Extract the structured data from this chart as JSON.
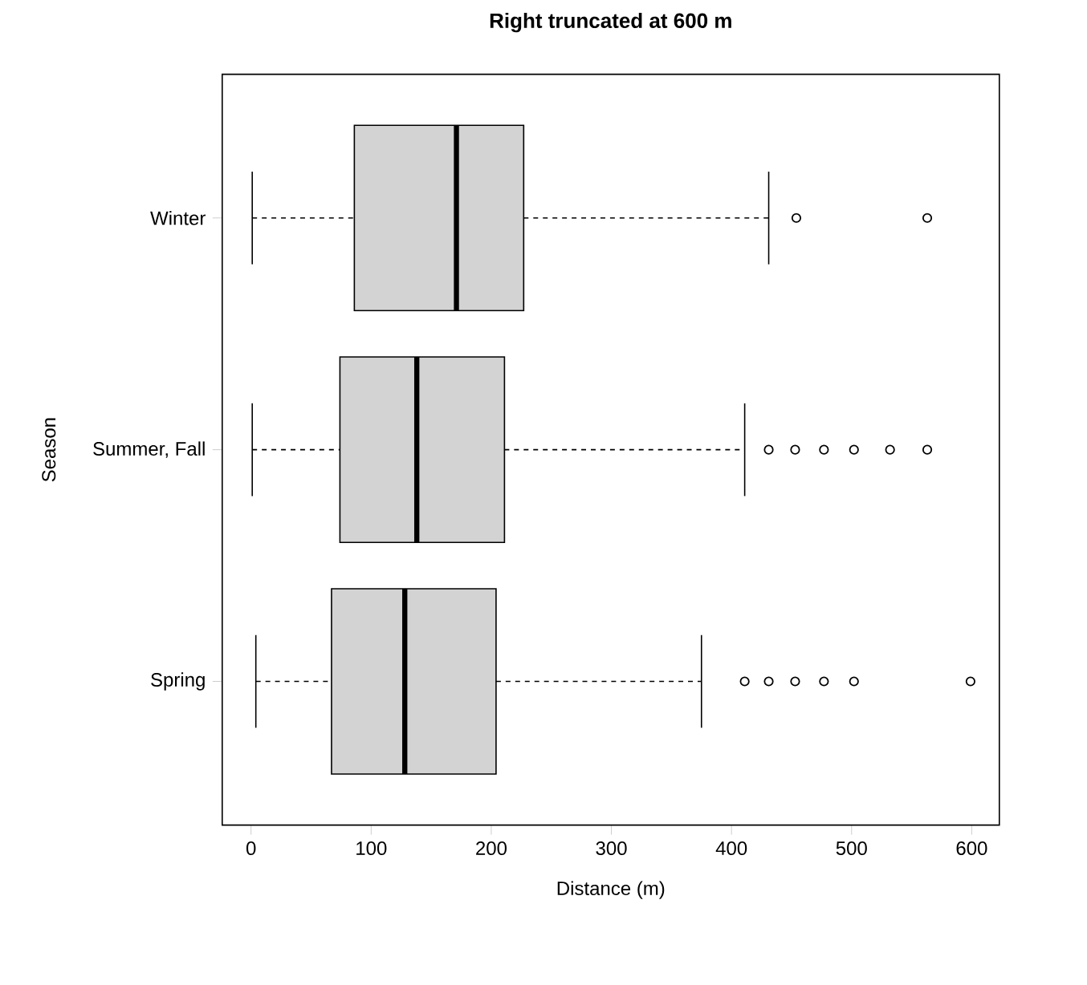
{
  "chart_data": {
    "type": "box",
    "title": "Right truncated at 600 m",
    "xlabel": "Distance (m)",
    "ylabel": "Season",
    "orientation": "horizontal",
    "color": "#d3d3d3",
    "categories": [
      "Winter",
      "Summer, Fall",
      "Spring"
    ],
    "boxes": [
      {
        "low": 1,
        "q1": 86,
        "median": 171,
        "q3": 227,
        "high": 431,
        "outliers": [
          454,
          563
        ]
      },
      {
        "low": 1,
        "q1": 74,
        "median": 138,
        "q3": 211,
        "high": 411,
        "outliers": [
          431,
          453,
          477,
          502,
          532,
          563
        ]
      },
      {
        "low": 4,
        "q1": 67,
        "median": 128,
        "q3": 204,
        "high": 375,
        "outliers": [
          411,
          431,
          453,
          477,
          502,
          599
        ]
      }
    ],
    "xlim": [
      -24,
      623
    ],
    "xticks": [
      0,
      100,
      200,
      300,
      400,
      500,
      600
    ],
    "grid": false
  }
}
